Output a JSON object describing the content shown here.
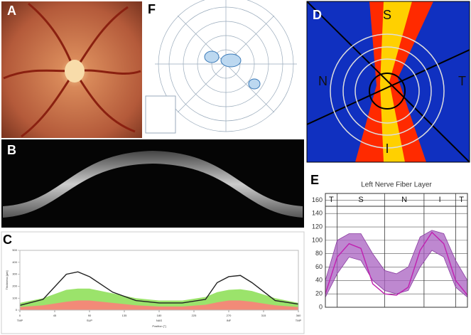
{
  "figure": {
    "panel_labels": [
      "A",
      "B",
      "C",
      "D",
      "E",
      "F"
    ]
  },
  "panel_d": {
    "sectors": [
      "S",
      "N",
      "T",
      "I"
    ]
  },
  "chart_data": [
    {
      "type": "line",
      "x_label": "Position [°]",
      "y_label": "Thickness [µm]",
      "x": [
        0,
        30,
        60,
        75,
        90,
        120,
        150,
        180,
        210,
        240,
        255,
        270,
        285,
        300,
        330,
        360
      ],
      "xlim": [
        0,
        360
      ],
      "xticks": [
        0,
        45,
        90,
        135,
        180,
        225,
        270,
        315,
        360
      ],
      "xtick_regions": [
        "TMP",
        "SUP",
        "NAS",
        "INF",
        "TMP"
      ],
      "ylim": [
        0,
        500
      ],
      "yticks": [
        0,
        100,
        200,
        300,
        400,
        500
      ],
      "series": [
        {
          "kind": "area",
          "color": "#9be36b",
          "values": [
            60,
            100,
            170,
            180,
            180,
            140,
            100,
            80,
            80,
            110,
            150,
            170,
            175,
            160,
            100,
            60
          ]
        },
        {
          "kind": "area",
          "color": "#f28a78",
          "values": [
            25,
            40,
            70,
            80,
            80,
            60,
            40,
            30,
            30,
            45,
            65,
            80,
            80,
            70,
            40,
            25
          ]
        },
        {
          "kind": "line",
          "color": "#222222",
          "values": [
            40,
            90,
            300,
            320,
            280,
            150,
            80,
            60,
            60,
            90,
            230,
            280,
            290,
            230,
            80,
            50
          ]
        }
      ]
    },
    {
      "type": "line",
      "title": "Left Nerve Fiber Layer",
      "x": [
        0,
        30,
        60,
        90,
        120,
        150,
        180,
        210,
        240,
        270,
        300,
        330,
        360
      ],
      "xlim": [
        0,
        360
      ],
      "ylim": [
        0,
        170
      ],
      "yticks": [
        0,
        20,
        40,
        60,
        80,
        100,
        120,
        140,
        160
      ],
      "grid": true,
      "sectors": [
        "T",
        "S",
        "N",
        "I",
        "T"
      ],
      "sector_edges": [
        0,
        30,
        150,
        250,
        330,
        360
      ],
      "series": [
        {
          "kind": "band",
          "color": "#a860c0",
          "upper": [
            40,
            100,
            110,
            110,
            80,
            55,
            50,
            60,
            105,
            115,
            110,
            70,
            40
          ],
          "lower": [
            15,
            50,
            75,
            70,
            40,
            25,
            20,
            25,
            60,
            85,
            75,
            30,
            15
          ]
        },
        {
          "kind": "line",
          "color": "#c020b0",
          "values": [
            20,
            75,
            95,
            88,
            35,
            20,
            18,
            30,
            85,
            112,
            95,
            40,
            18
          ]
        }
      ]
    }
  ]
}
